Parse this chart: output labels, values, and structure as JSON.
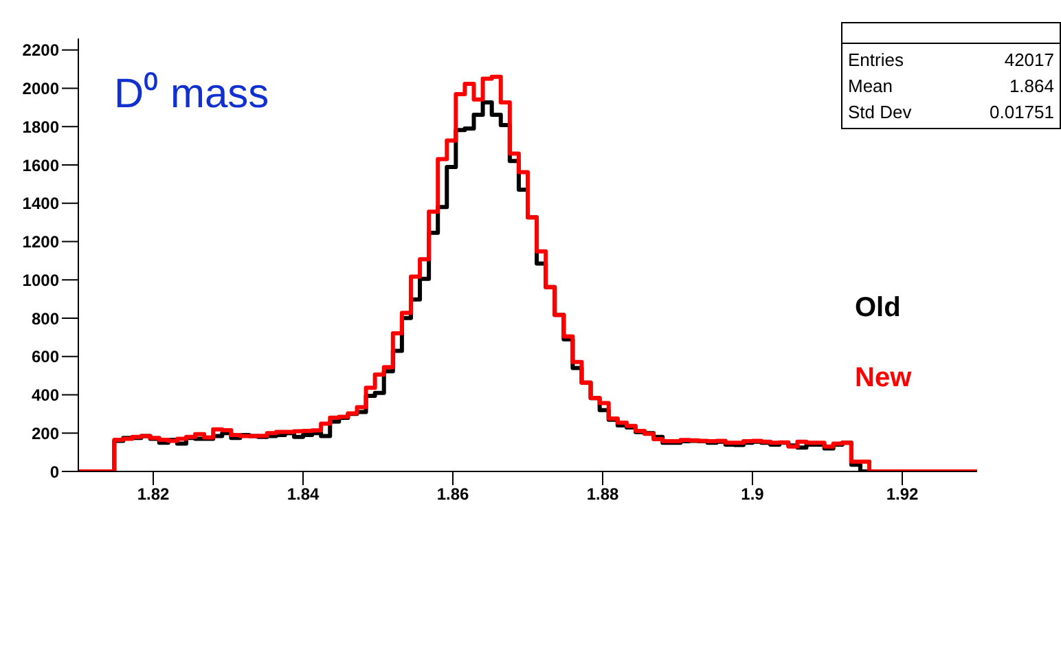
{
  "chart_data": {
    "type": "histogram",
    "title": "D⁰ mass",
    "bins": [
      1.81,
      1.8112,
      1.8124,
      1.8136,
      1.8148,
      1.816,
      1.8172,
      1.8184,
      1.8196,
      1.8208,
      1.822,
      1.8232,
      1.8244,
      1.8256,
      1.8268,
      1.828,
      1.8292,
      1.8304,
      1.8316,
      1.8328,
      1.834,
      1.8352,
      1.8364,
      1.8376,
      1.8388,
      1.84,
      1.8412,
      1.8424,
      1.8436,
      1.8448,
      1.846,
      1.8472,
      1.8484,
      1.8496,
      1.8508,
      1.852,
      1.8532,
      1.8544,
      1.8556,
      1.8568,
      1.858,
      1.8592,
      1.8604,
      1.8616,
      1.8628,
      1.864,
      1.8652,
      1.8664,
      1.8676,
      1.8688,
      1.87,
      1.8712,
      1.8724,
      1.8736,
      1.8748,
      1.876,
      1.8772,
      1.8784,
      1.8796,
      1.8808,
      1.882,
      1.8832,
      1.8844,
      1.8856,
      1.8868,
      1.888,
      1.8892,
      1.8904,
      1.8916,
      1.8928,
      1.894,
      1.8952,
      1.8964,
      1.8976,
      1.8988,
      1.9,
      1.9012,
      1.9024,
      1.9036,
      1.9048,
      1.906,
      1.9072,
      1.9084,
      1.9096,
      1.9108,
      1.912,
      1.9132,
      1.9144,
      1.9156,
      1.9168,
      1.918,
      1.9192,
      1.9204,
      1.9216,
      1.9228,
      1.924,
      1.9252,
      1.9264,
      1.9276,
      1.9288,
      1.93
    ],
    "series": [
      {
        "name": "Old",
        "color": "#000000",
        "values": [
          0,
          0,
          0,
          0,
          160,
          175,
          175,
          185,
          170,
          150,
          165,
          145,
          175,
          170,
          170,
          185,
          200,
          175,
          190,
          185,
          180,
          185,
          190,
          200,
          180,
          190,
          200,
          185,
          260,
          280,
          300,
          310,
          395,
          410,
          523,
          630,
          801,
          898,
          1005,
          1246,
          1380,
          1589,
          1782,
          1790,
          1862,
          1926,
          1862,
          1808,
          1621,
          1471,
          1326,
          1085,
          962,
          817,
          690,
          540,
          464,
          383,
          320,
          270,
          240,
          230,
          205,
          200,
          180,
          150,
          150,
          158,
          160,
          158,
          150,
          155,
          140,
          138,
          150,
          155,
          150,
          140,
          150,
          135,
          125,
          140,
          140,
          120,
          140,
          150,
          35,
          0,
          0,
          0,
          0,
          0,
          0,
          0,
          0,
          0,
          0,
          0,
          0,
          0
        ]
      },
      {
        "name": "New",
        "color": "#ff0000",
        "values": [
          0,
          0,
          0,
          0,
          165,
          170,
          180,
          185,
          175,
          165,
          160,
          170,
          180,
          195,
          178,
          220,
          215,
          190,
          185,
          185,
          186,
          200,
          206,
          206,
          210,
          212,
          214,
          249,
          281,
          285,
          303,
          335,
          437,
          506,
          544,
          721,
          828,
          1017,
          1108,
          1356,
          1630,
          1727,
          1969,
          2023,
          1942,
          2050,
          2060,
          1926,
          1659,
          1562,
          1326,
          1149,
          962,
          817,
          705,
          571,
          464,
          383,
          357,
          276,
          255,
          238,
          212,
          196,
          169,
          158,
          158,
          164,
          162,
          160,
          158,
          160,
          150,
          150,
          158,
          160,
          155,
          150,
          152,
          130,
          155,
          150,
          150,
          130,
          145,
          150,
          51,
          51,
          0,
          0,
          0,
          0,
          0,
          0,
          0,
          0,
          0,
          0,
          0,
          0
        ]
      }
    ],
    "xlim": [
      1.81,
      1.93
    ],
    "xticks": [
      1.82,
      1.84,
      1.86,
      1.88,
      {
        "value": 1.9,
        "label": "1.9"
      },
      1.92
    ],
    "ylim": [
      0,
      2260
    ],
    "yticks": [
      0,
      200,
      400,
      600,
      800,
      1000,
      1200,
      1400,
      1600,
      1800,
      2000,
      2200
    ],
    "legend": "right",
    "annotations": [
      "Entries",
      "42017",
      "Mean",
      "1.864",
      "Std Dev",
      "0.01751"
    ]
  }
}
